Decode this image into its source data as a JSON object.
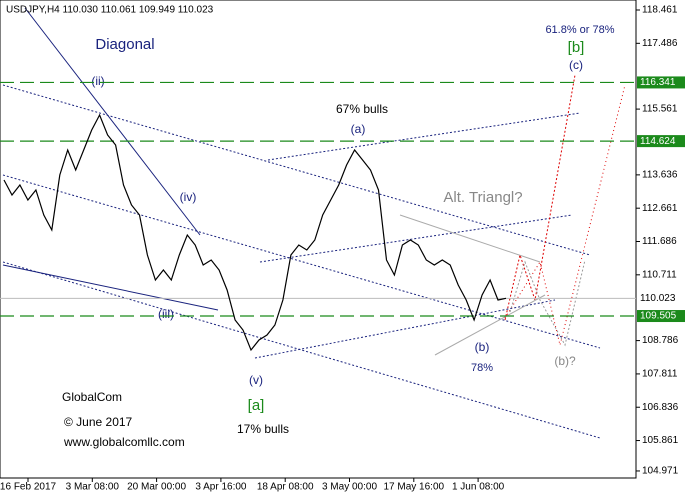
{
  "chart_data": {
    "type": "line",
    "title": "USDJPY,H4  110.030 110.061 109.949 110.023",
    "series": [
      {
        "name": "USDJPY",
        "color": "#000000",
        "values": [
          113.486,
          113.047,
          113.339,
          112.9,
          113.193,
          112.461,
          112.022,
          113.632,
          114.364,
          113.778,
          114.364,
          114.949,
          115.388,
          114.803,
          114.51,
          113.339,
          112.754,
          112.461,
          111.291,
          110.559,
          110.852,
          110.559,
          111.291,
          111.876,
          111.583,
          110.998,
          111.145,
          110.852,
          110.267,
          109.389,
          109.096,
          108.511,
          108.803,
          108.95,
          109.242,
          109.974,
          111.291,
          111.583,
          111.437,
          111.73,
          112.461,
          112.9,
          113.339,
          113.925,
          114.364,
          114.071,
          113.778,
          113.193,
          111.145,
          110.705,
          111.583,
          111.73,
          111.583,
          111.145,
          110.998,
          111.145,
          110.998,
          110.413,
          109.974,
          109.389,
          110.12,
          110.559,
          109.974,
          110.023
        ]
      }
    ],
    "xtick_labels": [
      "16 Feb 2017",
      "3 Mar 08:00",
      "20 Mar 00:00",
      "3 Apr 16:00",
      "18 Apr 08:00",
      "3 May 00:00",
      "17 May 16:00",
      "1 Jun 08:00"
    ],
    "ylim": [
      104.765,
      118.695
    ],
    "yticks": [
      118.461,
      117.486,
      115.561,
      113.636,
      112.661,
      111.686,
      110.711,
      108.786,
      107.811,
      106.836,
      105.861,
      104.971
    ],
    "levels": [
      116.341,
      114.624,
      109.505
    ],
    "level_color": "#1b8a1b",
    "last_price": 110.023,
    "annotations": {
      "diagonal": "Diagonal",
      "ii": "(ii)",
      "iv": "(iv)",
      "iii": "(iii)",
      "v": "(v)",
      "a_green": "[a]",
      "bulls17": "17% bulls",
      "bulls67": "67% bulls",
      "a": "(a)",
      "alt": "Alt. Triangl?",
      "target": "61.8% or 78%",
      "b_green": "[b]",
      "c": "(c)",
      "b": "(b)",
      "pct78": "78%",
      "b_alt": "(b)?",
      "brand": "GlobalCom",
      "copy": "© June 2017",
      "web": "www.globalcomllc.com"
    }
  }
}
